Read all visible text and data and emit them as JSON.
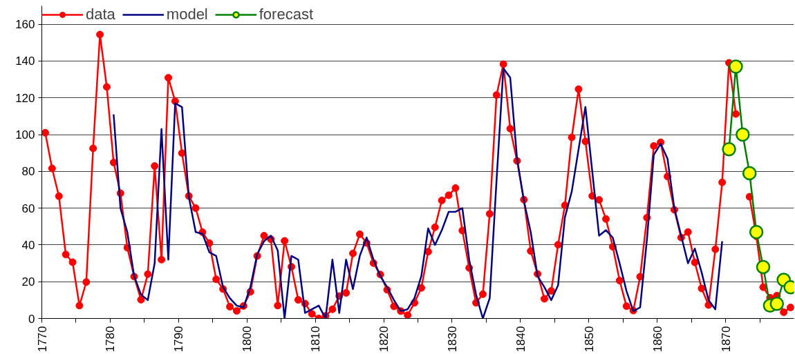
{
  "chart_data": {
    "type": "line",
    "xlim": [
      1770,
      1880
    ],
    "ylim": [
      0,
      170
    ],
    "xticks": [
      1770,
      {
        "value": 1775,
        "label": null
      },
      1780,
      {
        "value": 1785,
        "label": null
      },
      1790,
      {
        "value": 1795,
        "label": null
      },
      1800,
      {
        "value": 1805,
        "label": null
      },
      1810,
      {
        "value": 1815,
        "label": null
      },
      1820,
      {
        "value": 1825,
        "label": null
      },
      1830,
      {
        "value": 1835,
        "label": null
      },
      1840,
      {
        "value": 1845,
        "label": null
      },
      1850,
      {
        "value": 1855,
        "label": null
      },
      1860,
      {
        "value": 1865,
        "label": null
      },
      1870,
      {
        "value": 1875,
        "label": null
      }
    ],
    "yticks": [
      0,
      20,
      40,
      60,
      80,
      100,
      120,
      140,
      160
    ],
    "grid": "y",
    "legend": "top left",
    "series": [
      {
        "name": "data",
        "color": "#ff0000",
        "marker": "circle",
        "x": [
          1770.5,
          1771.5,
          1772.5,
          1773.5,
          1774.5,
          1775.5,
          1776.5,
          1777.5,
          1778.5,
          1779.5,
          1780.5,
          1781.5,
          1782.5,
          1783.5,
          1784.5,
          1785.5,
          1786.5,
          1787.5,
          1788.5,
          1789.5,
          1790.5,
          1791.5,
          1792.5,
          1793.5,
          1794.5,
          1795.5,
          1796.5,
          1797.5,
          1798.5,
          1799.5,
          1800.5,
          1801.5,
          1802.5,
          1803.5,
          1804.5,
          1805.5,
          1806.5,
          1807.5,
          1808.5,
          1809.5,
          1810.5,
          1811.5,
          1812.5,
          1813.5,
          1814.5,
          1815.5,
          1816.5,
          1817.5,
          1818.5,
          1819.5,
          1820.5,
          1821.5,
          1822.5,
          1823.5,
          1824.5,
          1825.5,
          1826.5,
          1827.5,
          1828.5,
          1829.5,
          1830.5,
          1831.5,
          1832.5,
          1833.5,
          1834.5,
          1835.5,
          1836.5,
          1837.5,
          1838.5,
          1839.5,
          1840.5,
          1841.5,
          1842.5,
          1843.5,
          1844.5,
          1845.5,
          1846.5,
          1847.5,
          1848.5,
          1849.5,
          1850.5,
          1851.5,
          1852.5,
          1853.5,
          1854.5,
          1855.5,
          1856.5,
          1857.5,
          1858.5,
          1859.5,
          1860.5,
          1861.5,
          1862.5,
          1863.5,
          1864.5,
          1865.5,
          1866.5,
          1867.5,
          1868.5,
          1869.5,
          1870.5,
          1871.5,
          1872.5,
          1873.5,
          1874.5,
          1875.5,
          1876.5,
          1877.5,
          1878.5,
          1879.5
        ],
        "values": [
          101,
          81.6,
          66.5,
          34.8,
          30.6,
          7,
          19.8,
          92.5,
          154.4,
          125.9,
          84.8,
          68.1,
          38.5,
          22.8,
          10.2,
          24.1,
          82.9,
          32,
          130.9,
          118.1,
          89.9,
          66.6,
          60,
          46.9,
          41,
          21.3,
          16,
          6.4,
          4.1,
          6.8,
          14.5,
          34,
          45,
          43.1,
          7,
          42.2,
          28.1,
          10.1,
          8.1,
          2.5,
          0,
          1.4,
          5,
          12.2,
          13.9,
          35.4,
          45.8,
          41.1,
          30.1,
          23.9,
          15.6,
          6.6,
          4,
          1.8,
          8.5,
          16.6,
          36.3,
          49.6,
          64.2,
          67,
          70.9,
          47.8,
          27.5,
          8.5,
          13.2,
          56.9,
          121.5,
          138.3,
          103.2,
          85.7,
          64.6,
          36.7,
          24.2,
          10.7,
          15,
          40.1,
          61.5,
          98.5,
          124.7,
          96.3,
          66.6,
          64.5,
          54.1,
          39,
          20.6,
          6.7,
          4.3,
          22.7,
          54.8,
          93.8,
          95.8,
          77.2,
          59.1,
          44,
          47,
          30.5,
          16.3,
          7.3,
          37.6,
          74,
          139,
          111.2,
          null,
          66.2,
          44.7,
          17,
          11.3,
          12.4,
          3.4,
          6
        ]
      },
      {
        "name": "model",
        "color": "#000080",
        "marker": "none",
        "x": [
          1780.5,
          1781.5,
          1782.5,
          1783.5,
          1784.5,
          1785.5,
          1786.5,
          1787.5,
          1788.5,
          1789.5,
          1790.5,
          1791.5,
          1792.5,
          1793.5,
          1794.5,
          1795.5,
          1796.5,
          1797.5,
          1798.5,
          1799.5,
          1800.5,
          1801.5,
          1802.5,
          1803.5,
          1804.5,
          1805.5,
          1806.5,
          1807.5,
          1808.5,
          1809.5,
          1810.5,
          1811.5,
          1812.5,
          1813.5,
          1814.5,
          1815.5,
          1816.5,
          1817.5,
          1818.5,
          1819.5,
          1820.5,
          1821.5,
          1822.5,
          1823.5,
          1824.5,
          1825.5,
          1826.5,
          1827.5,
          1828.5,
          1829.5,
          1830.5,
          1831.5,
          1832.5,
          1833.5,
          1834.5,
          1835.5,
          1836.5,
          1837.5,
          1838.5,
          1839.5,
          1840.5,
          1841.5,
          1842.5,
          1843.5,
          1844.5,
          1845.5,
          1846.5,
          1847.5,
          1848.5,
          1849.5,
          1850.5,
          1851.5,
          1852.5,
          1853.5,
          1854.5,
          1855.5,
          1856.5,
          1857.5,
          1858.5,
          1859.5,
          1860.5,
          1861.5,
          1862.5,
          1863.5,
          1864.5,
          1865.5,
          1866.5,
          1867.5,
          1868.5,
          1869.5
        ],
        "values": [
          111,
          60,
          47,
          23,
          13,
          10,
          30,
          103,
          32,
          117,
          115,
          66,
          47,
          46,
          36,
          34,
          17,
          11,
          7,
          6,
          17,
          35,
          42,
          45,
          37,
          0,
          34,
          32,
          3,
          5,
          7,
          0,
          32,
          3,
          32,
          16,
          34,
          44,
          32,
          23,
          17,
          10,
          4,
          5,
          11,
          23,
          49,
          40,
          48,
          58,
          58,
          60,
          32,
          13,
          0,
          11,
          75,
          136,
          131,
          87,
          64,
          47,
          23,
          17,
          10,
          18,
          55,
          69,
          92,
          115,
          80,
          45,
          48,
          44,
          30,
          15,
          4,
          6,
          43,
          89,
          95,
          87,
          60,
          45,
          30,
          38,
          25,
          10,
          5,
          42
        ]
      },
      {
        "name": "forecast",
        "color": "#008000",
        "marker": "circle",
        "colors": [
          "#ffff00",
          "#ffff00",
          "#ffff00",
          "#ffff00",
          "#ffff00",
          "#ffff00",
          "#ffff00",
          "#ffff00",
          "#ffff00",
          "#ffff00"
        ],
        "x": [
          1870.5,
          1871.5,
          1872.5,
          1873.5,
          1874.5,
          1875.5,
          1876.5,
          1877.5,
          1878.5,
          1879.5
        ],
        "values": [
          92,
          137,
          100,
          79,
          47,
          28,
          7,
          8,
          21,
          17
        ]
      }
    ]
  }
}
